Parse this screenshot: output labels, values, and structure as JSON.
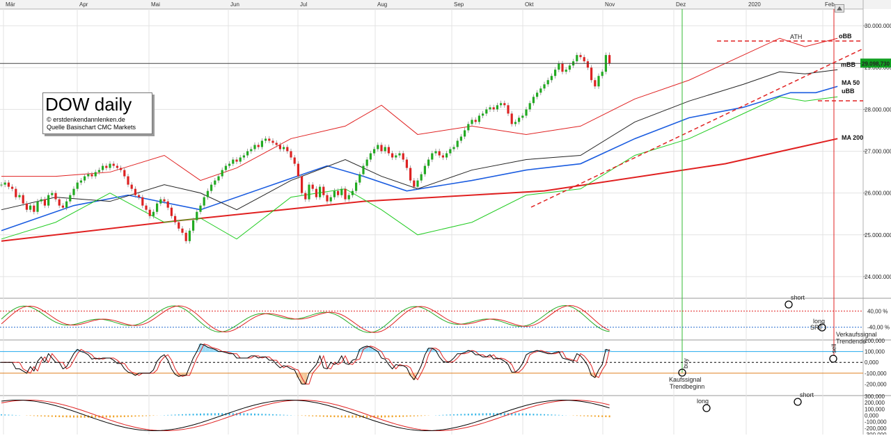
{
  "chart_data": {
    "type": "line",
    "title": "DOW daily",
    "source_lines": [
      "© erstdenkendannlenken.de",
      "Quelle Basischart CMC Markets"
    ],
    "months": [
      "Mär",
      "Apr",
      "Mai",
      "Jun",
      "Jul",
      "Aug",
      "Sep",
      "Okt",
      "Nov",
      "Dez",
      "2020",
      "Feb"
    ],
    "price_axis": {
      "min": 23500000,
      "max": 30400000,
      "ticks": [
        24000000,
        25000000,
        26000000,
        27000000,
        28000000,
        29000000,
        30000000
      ],
      "tick_labels": [
        "24.000.000",
        "25.000.000",
        "26.000.000",
        "27.000.000",
        "28.000.000",
        "29.000.000",
        "30.000.000"
      ],
      "last_price_label": "29.098,730",
      "last_price": 29098730
    },
    "series": [
      {
        "name": "MA 200",
        "color": "#e02020",
        "x": [
          0,
          50,
          100,
          150,
          200,
          231
        ],
        "values": [
          24850000,
          25350000,
          25800000,
          26050000,
          26700000,
          27300000
        ]
      },
      {
        "name": "MA 50",
        "color": "#1a5ce0",
        "x": [
          0,
          20,
          35,
          55,
          75,
          90,
          100,
          112,
          130,
          145,
          160,
          175,
          190,
          205,
          218,
          225,
          231
        ],
        "values": [
          25100000,
          25700000,
          25950000,
          25600000,
          26200000,
          26650000,
          26400000,
          26050000,
          26300000,
          26550000,
          26700000,
          27300000,
          27800000,
          28050000,
          28400000,
          28400000,
          28550000
        ]
      },
      {
        "name": "mBB",
        "color": "#222222",
        "x": [
          0,
          15,
          30,
          45,
          55,
          65,
          80,
          95,
          105,
          115,
          130,
          145,
          160,
          175,
          190,
          205,
          215,
          222,
          231
        ],
        "values": [
          25600000,
          25900000,
          25800000,
          26200000,
          26000000,
          25600000,
          26300000,
          26800000,
          26400000,
          26100000,
          26550000,
          26800000,
          26900000,
          27700000,
          28200000,
          28600000,
          28900000,
          28850000,
          28950000
        ]
      },
      {
        "name": "oBB",
        "color": "#e02020",
        "x": [
          0,
          15,
          30,
          45,
          55,
          65,
          80,
          95,
          105,
          115,
          130,
          145,
          160,
          175,
          190,
          205,
          215,
          222,
          231
        ],
        "values": [
          26400000,
          26400000,
          26500000,
          26900000,
          26300000,
          26600000,
          27300000,
          27600000,
          28100000,
          27400000,
          27600000,
          27400000,
          27600000,
          28250000,
          28700000,
          29300000,
          29700000,
          29500000,
          29700000
        ]
      },
      {
        "name": "uBB",
        "color": "#22cc22",
        "x": [
          0,
          15,
          30,
          45,
          55,
          65,
          80,
          95,
          105,
          115,
          130,
          145,
          160,
          175,
          190,
          205,
          215,
          222,
          231
        ],
        "values": [
          24900000,
          25300000,
          26000000,
          25300000,
          25400000,
          24900000,
          25900000,
          26100000,
          25600000,
          25000000,
          25300000,
          25950000,
          26100000,
          26900000,
          27300000,
          27900000,
          28300000,
          28200000,
          28300000
        ]
      }
    ],
    "candles_close": [
      26200000,
      26250000,
      26150000,
      26100000,
      25900000,
      25950000,
      25750000,
      25600000,
      25700000,
      25550000,
      25800000,
      25850000,
      25700000,
      25950000,
      26000000,
      25850000,
      25700000,
      25650000,
      25800000,
      25950000,
      26100000,
      26250000,
      26300000,
      26400000,
      26450000,
      26400000,
      26500000,
      26550000,
      26650000,
      26600000,
      26700000,
      26650000,
      26600000,
      26550000,
      26400000,
      26200000,
      26100000,
      25950000,
      25900000,
      25700000,
      25600000,
      25450000,
      25550000,
      25750000,
      25850000,
      25800000,
      25650000,
      25450000,
      25300000,
      25150000,
      25050000,
      24850000,
      25100000,
      25350000,
      25550000,
      25700000,
      25900000,
      26050000,
      26200000,
      26300000,
      26400000,
      26550000,
      26650000,
      26700000,
      26800000,
      26750000,
      26850000,
      26900000,
      27000000,
      27050000,
      27150000,
      27100000,
      27250000,
      27300000,
      27250000,
      27200000,
      27150000,
      27050000,
      27100000,
      27000000,
      26850000,
      26700000,
      26400000,
      26000000,
      25850000,
      26200000,
      26100000,
      25900000,
      26150000,
      25950000,
      25800000,
      25900000,
      26050000,
      25950000,
      26100000,
      25850000,
      25950000,
      26050000,
      26250000,
      26450000,
      26650000,
      26800000,
      26950000,
      27050000,
      27150000,
      27000000,
      27100000,
      26950000,
      26850000,
      26900000,
      26950000,
      26800000,
      26600000,
      26300000,
      26150000,
      26300000,
      26450000,
      26650000,
      26800000,
      26950000,
      27000000,
      26900000,
      26850000,
      26950000,
      27050000,
      27100000,
      27250000,
      27350000,
      27500000,
      27650000,
      27750000,
      27700000,
      27850000,
      27900000,
      28000000,
      28050000,
      28000000,
      28100000,
      28150000,
      28100000,
      27900000,
      27650000,
      27700000,
      27800000,
      27850000,
      28000000,
      28150000,
      28300000,
      28400000,
      28500000,
      28600000,
      28700000,
      28800000,
      28950000,
      29100000,
      28900000,
      28950000,
      29050000,
      29150000,
      29300000,
      29250000,
      29150000,
      29000000,
      28700000,
      28550000,
      28800000,
      28900000,
      29300000,
      29100000
    ],
    "indicator_labels": {
      "stoch_ticks": [
        "40,00 %",
        "-40,00 %"
      ],
      "osc_ticks": [
        "200,000",
        "100,000",
        "0,000",
        "-100,000",
        "-200,000"
      ],
      "macd_ticks": [
        "300,000",
        "200,000",
        "100,000",
        "0,000",
        "-100,000",
        "-200,000",
        "-300,000"
      ]
    },
    "legend_labels": [
      "oBB",
      "mBB",
      "MA 50",
      "uBB",
      "MA 200"
    ],
    "annotations": {
      "ath": "ATH",
      "short_1": "short",
      "long_1": "long",
      "srt": "SRT",
      "verkauf_1": "Verkaufssignal",
      "verkauf_2": "Trendende",
      "kauf_1": "Kaufssignal",
      "kauf_2": "Trendbeginn",
      "buy": "buy",
      "sell": "sell",
      "long_2": "long",
      "short_2": "short"
    },
    "colors": {
      "up": "#22aa22",
      "down": "#dd2222",
      "accent_green": "#00c000",
      "last_price_bg": "#10a020"
    }
  }
}
